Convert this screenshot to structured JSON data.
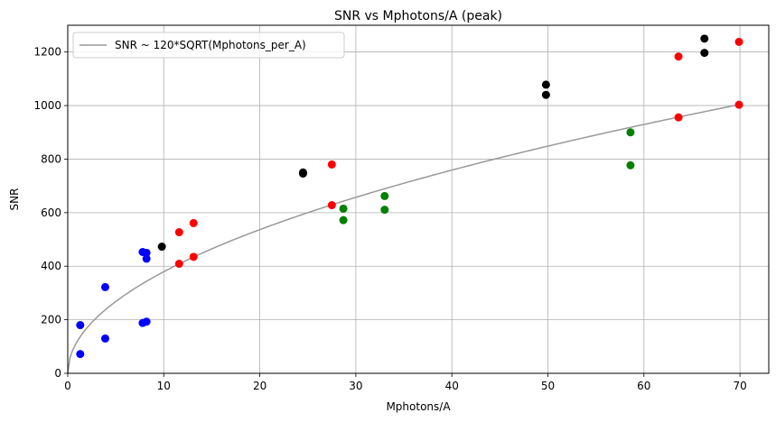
{
  "chart_data": {
    "type": "scatter",
    "title": "SNR vs Mphotons/A (peak)",
    "xlabel": "Mphotons/A",
    "ylabel": "SNR",
    "xlim": [
      0,
      73
    ],
    "ylim": [
      0,
      1300
    ],
    "xticks": [
      "0",
      "10",
      "20",
      "30",
      "40",
      "50",
      "60",
      "70"
    ],
    "yticks": [
      "0",
      "200",
      "400",
      "600",
      "800",
      "1000",
      "1200"
    ],
    "grid": true,
    "legend_position": "top-left",
    "curve": {
      "name": "SNR ~ 120*SQRT(Mphotons_per_A)",
      "coefficient": 120,
      "x_range": [
        0,
        70
      ],
      "color": "#999999"
    },
    "series": [
      {
        "color": "#0000ff",
        "points": [
          [
            1.3,
            180
          ],
          [
            1.3,
            72
          ],
          [
            3.9,
            322
          ],
          [
            3.9,
            130
          ],
          [
            7.8,
            453
          ],
          [
            8.2,
            450
          ],
          [
            8.2,
            428
          ],
          [
            7.8,
            188
          ],
          [
            8.2,
            193
          ]
        ]
      },
      {
        "color": "#000000",
        "points": [
          [
            9.8,
            473
          ],
          [
            24.5,
            750
          ],
          [
            24.5,
            746
          ],
          [
            49.8,
            1078
          ],
          [
            49.8,
            1040
          ],
          [
            66.3,
            1250
          ],
          [
            66.3,
            1197
          ]
        ]
      },
      {
        "color": "#ff0000",
        "points": [
          [
            11.6,
            527
          ],
          [
            13.1,
            561
          ],
          [
            11.6,
            409
          ],
          [
            13.1,
            435
          ],
          [
            27.5,
            780
          ],
          [
            27.5,
            628
          ],
          [
            63.6,
            1183
          ],
          [
            63.6,
            956
          ],
          [
            69.9,
            1238
          ],
          [
            69.9,
            1003
          ]
        ]
      },
      {
        "color": "#008000",
        "points": [
          [
            28.7,
            615
          ],
          [
            28.7,
            572
          ],
          [
            33.0,
            662
          ],
          [
            33.0,
            611
          ],
          [
            58.6,
            900
          ],
          [
            58.6,
            777
          ]
        ]
      }
    ]
  }
}
